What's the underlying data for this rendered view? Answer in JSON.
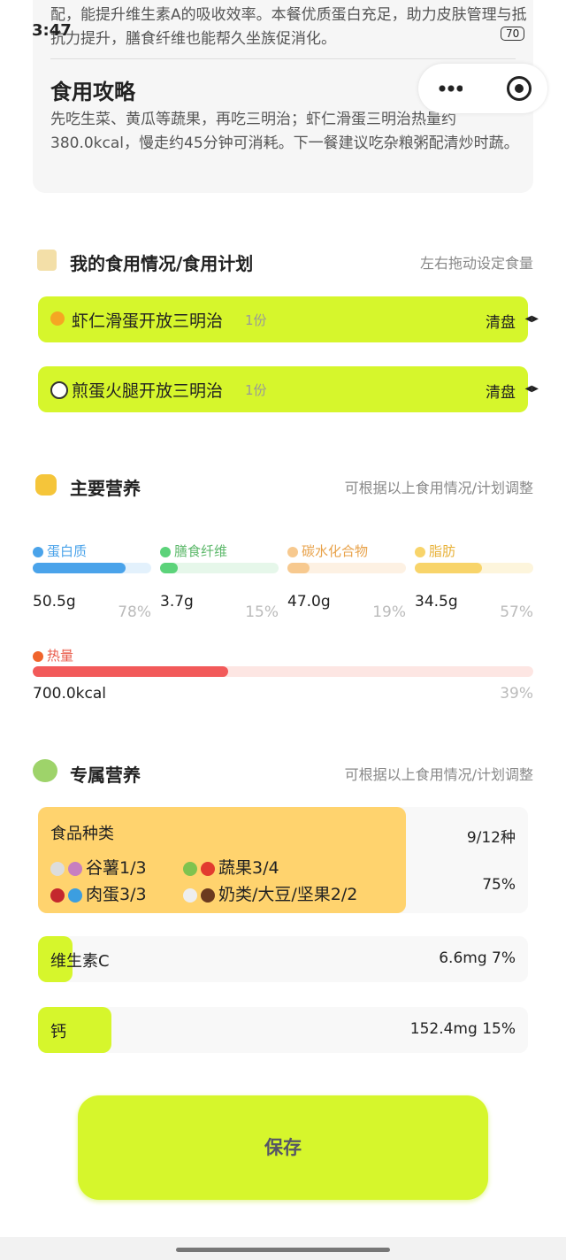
{
  "status_bar": {
    "time": "3:47",
    "battery": "70"
  },
  "guide_card": {
    "intro": "配，能提升维生素A的吸收效率。本餐优质蛋白充足，助力皮肤管理与抵抗力提升，膳食纤维也能帮久坐族促消化。",
    "title": "食用攻略",
    "body": "先吃生菜、黄瓜等蔬果，再吃三明治；虾仁滑蛋三明治热量约380.0kcal，慢走约45分钟可消耗。下一餐建议吃杂粮粥配清炒时蔬。"
  },
  "plan": {
    "title": "我的食用情况/食用计划",
    "hint": "左右拖动设定食量",
    "items": [
      {
        "name": "虾仁滑蛋开放三明治",
        "portion": "1份",
        "status": "清盘"
      },
      {
        "name": "煎蛋火腿开放三明治",
        "portion": "1份",
        "status": "清盘"
      }
    ]
  },
  "main_nutrition": {
    "title": "主要营养",
    "hint": "可根据以上食用情况/计划调整",
    "items": [
      {
        "name": "蛋白质",
        "amount": "50.5g",
        "percent": {
          "value": 78,
          "label": "78%"
        }
      },
      {
        "name": "膳食纤维",
        "amount": "3.7g",
        "percent": {
          "value": 15,
          "label": "15%"
        }
      },
      {
        "name": "碳水化合物",
        "amount": "47.0g",
        "percent": {
          "value": 19,
          "label": "19%"
        }
      },
      {
        "name": "脂肪",
        "amount": "34.5g",
        "percent": {
          "value": 57,
          "label": "57%"
        }
      }
    ],
    "energy": {
      "name": "热量",
      "amount": "700.0kcal",
      "percent": {
        "value": 39,
        "label": "39%"
      }
    }
  },
  "special": {
    "title": "专属营养",
    "hint": "可根据以上食用情况/计划调整",
    "food_types": {
      "title": "食品种类",
      "count": "9/12种",
      "percent": {
        "value": 75,
        "label": "75%"
      },
      "groups": [
        "谷薯1/3",
        "蔬果3/4",
        "肉蛋3/3",
        "奶类/大豆/坚果2/2"
      ]
    },
    "items": [
      {
        "name": "维生素C",
        "amount": "6.6mg",
        "percent": {
          "value": 7,
          "label": "7%"
        }
      },
      {
        "name": "钙",
        "amount": "152.4mg",
        "percent": {
          "value": 15,
          "label": "15%"
        }
      }
    ]
  },
  "save": "保存"
}
